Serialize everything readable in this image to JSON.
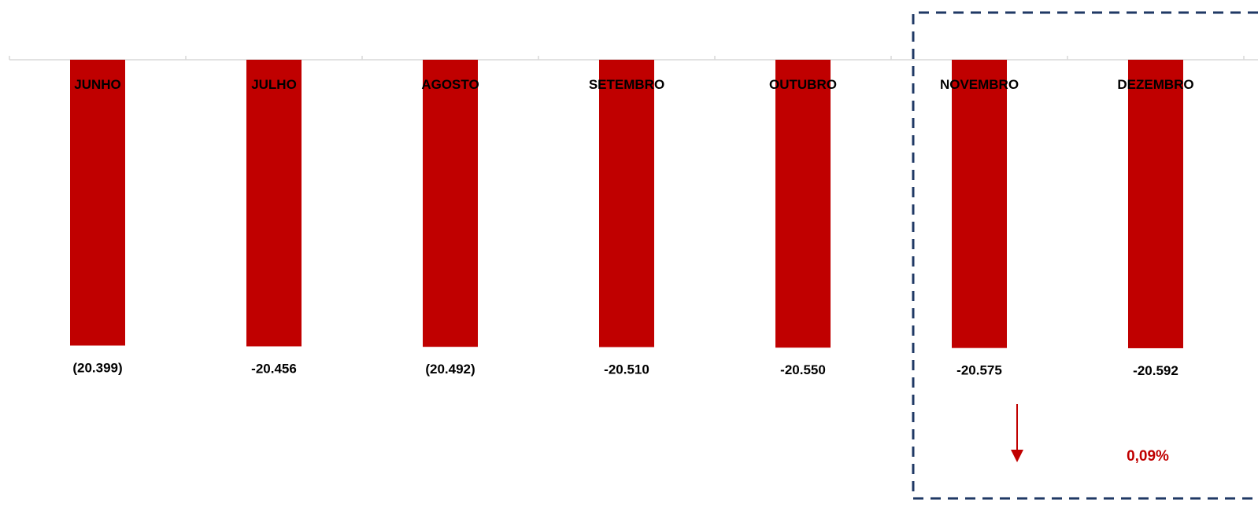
{
  "chart_data": {
    "type": "bar",
    "categories": [
      "JUNHO",
      "JULHO",
      "AGOSTO",
      "SETEMBRO",
      "OUTUBRO",
      "NOVEMBRO",
      "DEZEMBRO"
    ],
    "values": [
      -20399,
      -20456,
      -20492,
      -20510,
      -20550,
      -20575,
      -20592
    ],
    "value_labels": [
      "(20.399)",
      "-20.456",
      "(20.492)",
      "-20.510",
      "-20.550",
      "-20.575",
      "-20.592"
    ],
    "title": "",
    "xlabel": "",
    "ylabel": "",
    "ylim": [
      -20650,
      0
    ],
    "grid": false,
    "legend": "none",
    "bar_color": "#C00000",
    "highlight": {
      "categories": [
        "NOVEMBRO",
        "DEZEMBRO"
      ],
      "border_color": "#1F3864",
      "border_style": "dashed",
      "variation_label": "0,09%",
      "variation_color": "#C00000",
      "arrow": "down"
    }
  }
}
